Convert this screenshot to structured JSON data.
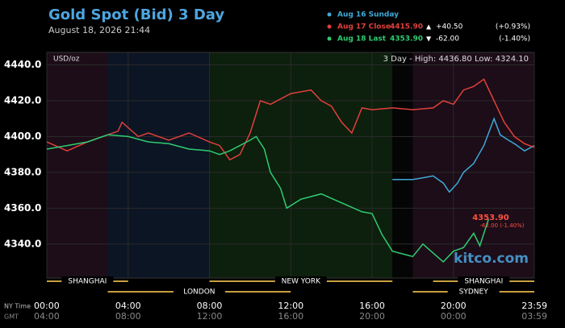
{
  "chart_data": {
    "type": "line",
    "title": "Gold Spot (Bid) 3 Day",
    "subtitle": "August 18, 2026 21:44",
    "unit_label": "USD/oz",
    "range_label": "3 Day - High: 4436.80  Low: 4324.10",
    "watermark": "kitco.com",
    "last_price_label": "4353.90",
    "last_change_label": "-62.00 (-1.40%)",
    "x_row_label": "NY Time",
    "x2_row_label": "GMT",
    "sessions": [
      "SHANGHAI",
      "LONDON",
      "NEW YORK",
      "SHANGHAI",
      "SYDNEY"
    ],
    "xlim": [
      0,
      23.98
    ],
    "xticks": [
      {
        "value": 0,
        "label": "00:00"
      },
      {
        "value": 4,
        "label": "04:00"
      },
      {
        "value": 8,
        "label": "08:00"
      },
      {
        "value": 12,
        "label": "12:00"
      },
      {
        "value": 16,
        "label": "16:00"
      },
      {
        "value": 20,
        "label": "20:00"
      },
      {
        "value": 23.98,
        "label": "23:59"
      }
    ],
    "x2tick_labels": [
      "04:00",
      "08:00",
      "12:00",
      "16:00",
      "20:00",
      "00:00",
      "03:59"
    ],
    "ylim": [
      4321,
      4447
    ],
    "yticks": [
      {
        "value": 4340,
        "label": "4340.0"
      },
      {
        "value": 4360,
        "label": "4360.0"
      },
      {
        "value": 4380,
        "label": "4380.0"
      },
      {
        "value": 4400,
        "label": "4400.0"
      },
      {
        "value": 4420,
        "label": "4420.0"
      },
      {
        "value": 4440,
        "label": "4440.0"
      }
    ],
    "grid": true,
    "series": [
      {
        "name": "Aug 16 Sunday",
        "color": "#3fa9d9",
        "x": [
          17,
          18,
          18.5,
          19,
          19.5,
          19.8,
          20.2,
          20.5,
          21,
          21.5,
          22,
          22.3,
          22.7,
          23,
          23.5,
          23.98
        ],
        "values": [
          4376,
          4376,
          4377,
          4378,
          4374,
          4369,
          4374,
          4380,
          4385,
          4395,
          4410,
          4401,
          4398,
          4396,
          4392,
          4395
        ]
      },
      {
        "name": "Aug 17 Close",
        "color": "#e0403a",
        "legend_value": "4415.90",
        "legend_arrow": "▲",
        "legend_change": "+40.50",
        "legend_pct": "(+0.93%)",
        "x": [
          0,
          1,
          2,
          3,
          3.5,
          3.7,
          4.5,
          5,
          6,
          7,
          8,
          8.5,
          9,
          9.5,
          10,
          10.5,
          11,
          12,
          13,
          13.5,
          14,
          14.5,
          15,
          15.5,
          16,
          17,
          18,
          19,
          19.5,
          20,
          20.5,
          21,
          21.5,
          22,
          22.5,
          23,
          23.5,
          23.98
        ],
        "values": [
          4397,
          4392,
          4397,
          4401,
          4403,
          4408,
          4400,
          4402,
          4398,
          4402,
          4397,
          4395,
          4387,
          4390,
          4402,
          4420,
          4418,
          4424,
          4426,
          4420,
          4417,
          4408,
          4402,
          4416,
          4415,
          4416,
          4415,
          4416,
          4420,
          4418,
          4426,
          4428,
          4432,
          4420,
          4408,
          4400,
          4396,
          4394
        ]
      },
      {
        "name": "Aug 18 Last",
        "color": "#2ecc71",
        "legend_value": "4353.90",
        "legend_arrow": "▼",
        "legend_change": "-62.00",
        "legend_pct": "(-1.40%)",
        "x": [
          0,
          1,
          2,
          3,
          4,
          5,
          6,
          7,
          8,
          8.5,
          9,
          10,
          10.3,
          10.7,
          11,
          11.5,
          11.8,
          12.5,
          13.5,
          14.5,
          15.5,
          16,
          16.5,
          17,
          18,
          18.5,
          19,
          19.5,
          20,
          20.5,
          21,
          21.3,
          21.73
        ],
        "values": [
          4393,
          4395,
          4397,
          4401,
          4400,
          4397,
          4396,
          4393,
          4392,
          4390,
          4392,
          4398,
          4400,
          4393,
          4380,
          4371,
          4360,
          4365,
          4368,
          4363,
          4358,
          4357,
          4345,
          4336,
          4333,
          4340,
          4335,
          4330,
          4336,
          4338,
          4346,
          4339,
          4353.9
        ]
      }
    ]
  }
}
